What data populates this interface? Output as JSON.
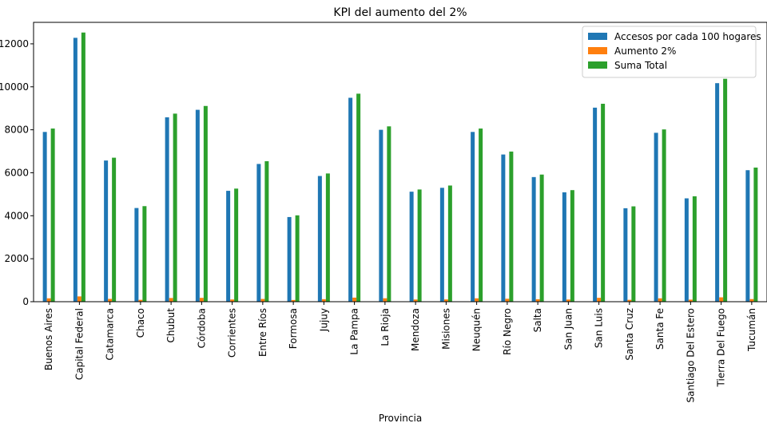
{
  "chart_data": {
    "type": "bar",
    "title": "KPI del aumento del 2%",
    "xlabel": "Provincia",
    "ylabel": "",
    "ylim": [
      0,
      13000
    ],
    "yticks": [
      0,
      2000,
      4000,
      6000,
      8000,
      10000,
      12000
    ],
    "grid": false,
    "legend_position": "top-right",
    "categories": [
      "Buenos Aires",
      "Capital Federal",
      "Catamarca",
      "Chaco",
      "Chubut",
      "Córdoba",
      "Corrientes",
      "Entre Ríos",
      "Formosa",
      "Jujuy",
      "La Pampa",
      "La Rioja",
      "Mendoza",
      "Misiones",
      "Neuquén",
      "Río Negro",
      "Salta",
      "San Juan",
      "San Luis",
      "Santa Cruz",
      "Santa Fe",
      "Santiago Del Estero",
      "Tierra Del Fuego",
      "Tucumán"
    ],
    "series": [
      {
        "name": "Accesos por cada 100 hogares",
        "color": "#1f77b4",
        "values": [
          7900,
          12280,
          6570,
          4360,
          8580,
          8930,
          5160,
          6410,
          3940,
          5850,
          9490,
          8000,
          5120,
          5300,
          7900,
          6850,
          5800,
          5090,
          9030,
          4350,
          7860,
          4810,
          10170,
          6120
        ]
      },
      {
        "name": "Aumento 2%",
        "color": "#ff7f0e",
        "values": [
          158,
          246,
          131,
          87,
          172,
          179,
          103,
          128,
          79,
          117,
          190,
          160,
          102,
          106,
          158,
          137,
          116,
          102,
          181,
          87,
          157,
          96,
          203,
          122
        ]
      },
      {
        "name": "Suma Total",
        "color": "#2ca02c",
        "values": [
          8058,
          12526,
          6701,
          4447,
          8752,
          9109,
          5263,
          6538,
          4019,
          5967,
          9680,
          8160,
          5222,
          5406,
          8058,
          6987,
          5916,
          5192,
          9211,
          4437,
          8017,
          4906,
          10373,
          6242
        ]
      }
    ]
  }
}
